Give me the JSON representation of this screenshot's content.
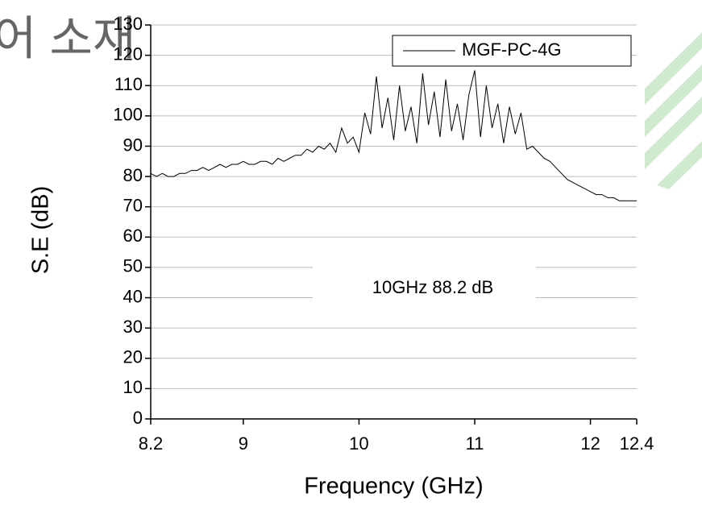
{
  "background_text": "어 소재",
  "chart_data": {
    "type": "line",
    "xlabel": "Frequency (GHz)",
    "ylabel": "S.E (dB)",
    "annotation": "10GHz 88.2 dB",
    "legend": "top-right",
    "grid": true,
    "x": [
      8.2,
      8.25,
      8.3,
      8.35,
      8.4,
      8.45,
      8.5,
      8.55,
      8.6,
      8.65,
      8.7,
      8.75,
      8.8,
      8.85,
      8.9,
      8.95,
      9.0,
      9.05,
      9.1,
      9.15,
      9.2,
      9.25,
      9.3,
      9.35,
      9.4,
      9.45,
      9.5,
      9.55,
      9.6,
      9.65,
      9.7,
      9.75,
      9.8,
      9.85,
      9.9,
      9.95,
      10.0,
      10.05,
      10.1,
      10.15,
      10.2,
      10.25,
      10.3,
      10.35,
      10.4,
      10.45,
      10.5,
      10.55,
      10.6,
      10.65,
      10.7,
      10.75,
      10.8,
      10.85,
      10.9,
      10.95,
      11.0,
      11.05,
      11.1,
      11.15,
      11.2,
      11.25,
      11.3,
      11.35,
      11.4,
      11.45,
      11.5,
      11.55,
      11.6,
      11.65,
      11.7,
      11.75,
      11.8,
      11.85,
      11.9,
      11.95,
      12.0,
      12.05,
      12.1,
      12.15,
      12.2,
      12.25,
      12.3,
      12.35,
      12.4
    ],
    "series": [
      {
        "name": "MGF-PC-4G",
        "color": "#000000",
        "values": [
          81,
          80,
          81,
          80,
          80,
          81,
          81,
          82,
          82,
          83,
          82,
          83,
          84,
          83,
          84,
          84,
          85,
          84,
          84,
          85,
          85,
          84,
          86,
          85,
          86,
          87,
          87,
          89,
          88,
          90,
          89,
          91,
          88,
          96,
          91,
          93,
          88,
          101,
          94,
          113,
          96,
          106,
          92,
          110,
          95,
          103,
          91,
          114,
          97,
          108,
          93,
          112,
          95,
          104,
          92,
          107,
          115,
          93,
          110,
          96,
          104,
          91,
          103,
          94,
          101,
          89,
          90,
          88,
          86,
          85,
          83,
          81,
          79,
          78,
          77,
          76,
          75,
          74,
          74,
          73,
          73,
          72,
          72,
          72,
          72
        ]
      }
    ],
    "xlim": [
      8.2,
      12.4
    ],
    "xticks": [
      8.2,
      9,
      10,
      11,
      12,
      12.4
    ],
    "ylim": [
      0,
      130
    ],
    "yticks": [
      0,
      10,
      20,
      30,
      40,
      50,
      60,
      70,
      80,
      90,
      100,
      110,
      120,
      130
    ]
  }
}
